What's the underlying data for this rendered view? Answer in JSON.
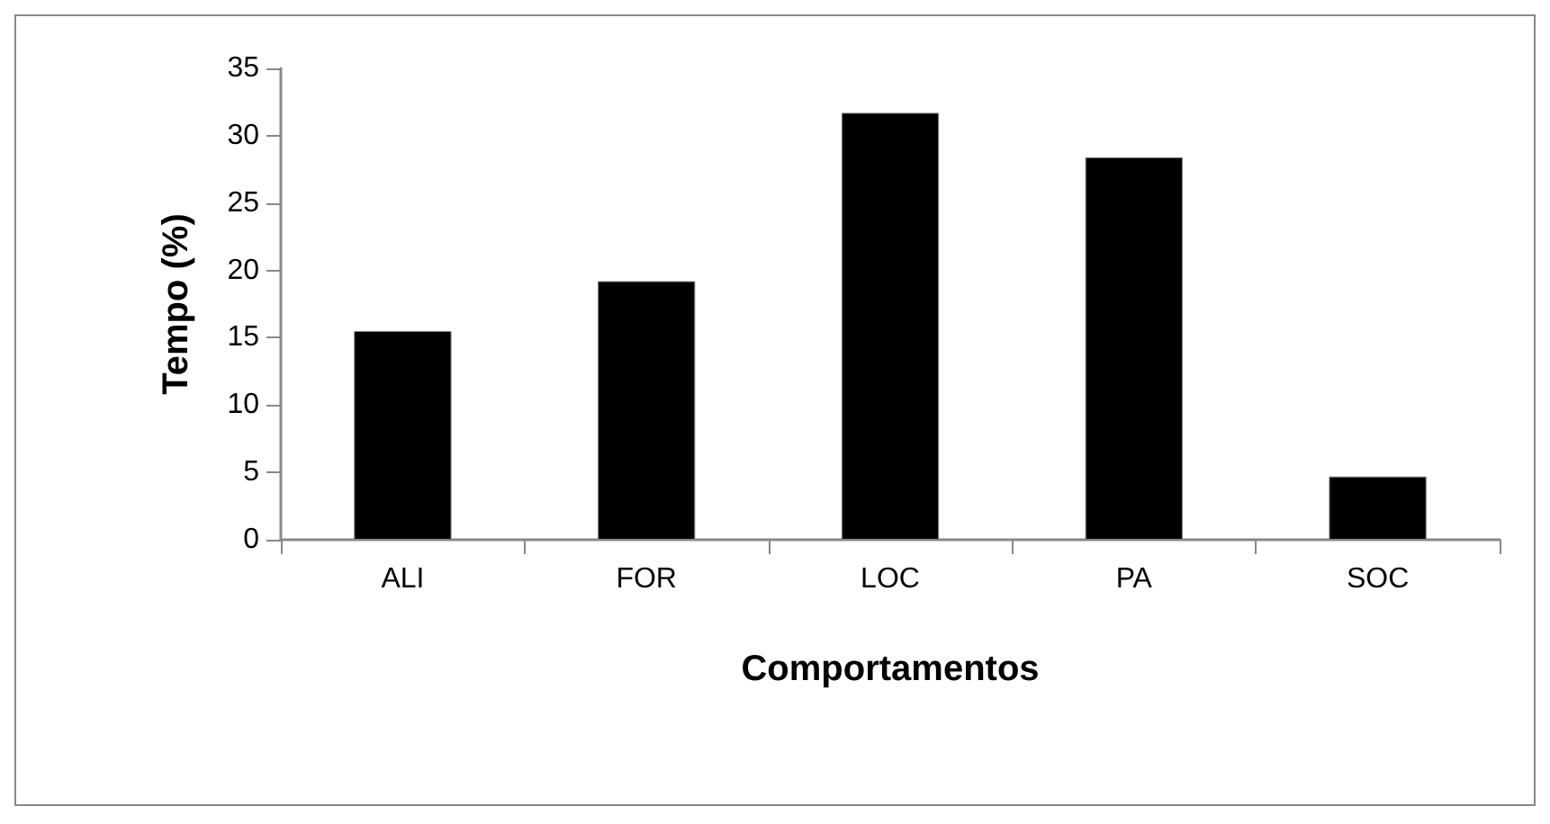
{
  "chart_data": {
    "type": "bar",
    "xlabel": "Comportamentos",
    "ylabel": "Tempo (%)",
    "categories": [
      "ALI",
      "FOR",
      "LOC",
      "PA",
      "SOC"
    ],
    "values": [
      15.5,
      19.2,
      31.7,
      28.4,
      4.7
    ],
    "color": "#000000",
    "ylim": [
      0,
      35
    ],
    "yticks": [
      0,
      5,
      10,
      15,
      20,
      25,
      30,
      35
    ],
    "grid": false
  }
}
